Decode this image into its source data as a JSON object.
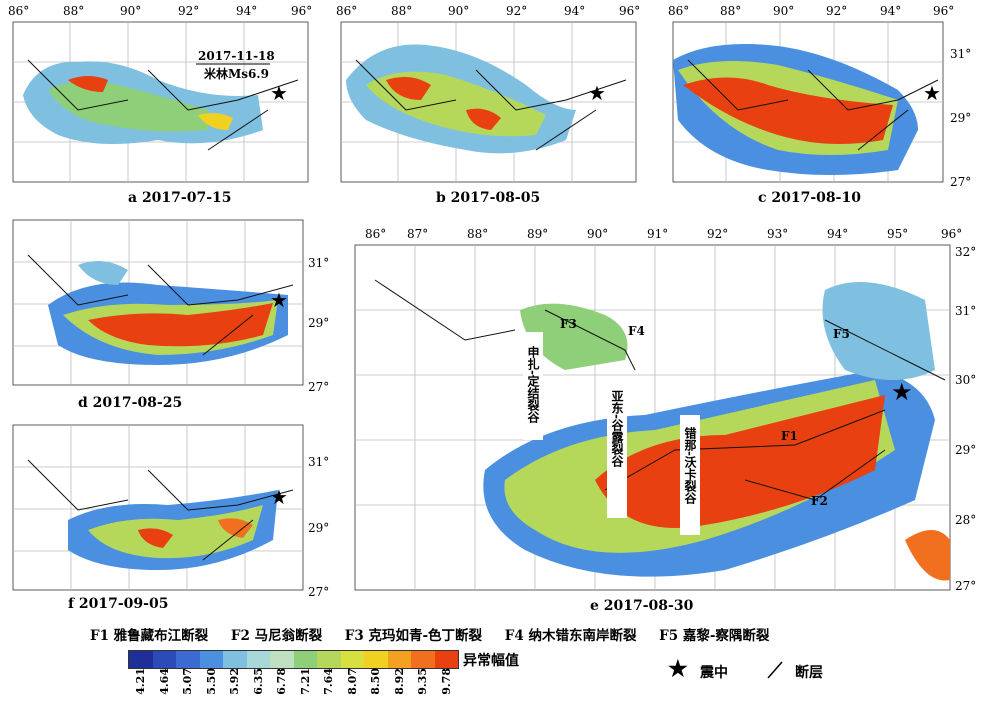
{
  "event": {
    "date": "2017-11-18",
    "name": "米林Ms6.9"
  },
  "panels": [
    {
      "id": "a",
      "caption": "a  2017-07-15",
      "lon_labels": [
        "86°",
        "88°",
        "90°",
        "92°",
        "94°",
        "96°"
      ],
      "lat_labels": []
    },
    {
      "id": "b",
      "caption": "b  2017-08-05",
      "lon_labels": [
        "86°",
        "88°",
        "90°",
        "92°",
        "94°",
        "96°"
      ],
      "lat_labels": []
    },
    {
      "id": "c",
      "caption": "c  2017-08-10",
      "lon_labels": [
        "86°",
        "88°",
        "90°",
        "92°",
        "94°",
        "96°"
      ],
      "lat_labels": [
        "31°",
        "29°",
        "27°"
      ]
    },
    {
      "id": "d",
      "caption": "d  2017-08-25",
      "lon_labels": [],
      "lat_labels": [
        "31°",
        "29°",
        "27°"
      ]
    },
    {
      "id": "f",
      "caption": "f  2017-09-05",
      "lon_labels": [],
      "lat_labels": [
        "31°",
        "29°",
        "27°"
      ]
    },
    {
      "id": "e",
      "caption": "e  2017-08-30",
      "lon_labels": [
        "86°",
        "87°",
        "88°",
        "89°",
        "90°",
        "91°",
        "92°",
        "93°",
        "94°",
        "95°",
        "96°"
      ],
      "lat_labels": [
        "32°",
        "31°",
        "30°",
        "29°",
        "28°",
        "27°"
      ]
    }
  ],
  "faults_legend": [
    "F1 雅鲁藏布江断裂",
    "F2 马尼翁断裂",
    "F3 克玛如青-色丁断裂",
    "F4 纳木错东南岸断裂",
    "F5 嘉黎-察隅断裂"
  ],
  "fault_labels": [
    "F1",
    "F2",
    "F3",
    "F4",
    "F5"
  ],
  "rifts": [
    "申扎-定结裂谷",
    "亚东-谷露裂谷",
    "错那-沃卡裂谷"
  ],
  "colorbar": {
    "title": "异常幅值",
    "ticks": [
      "4.21",
      "4.64",
      "5.07",
      "5.50",
      "5.92",
      "6.35",
      "6.78",
      "7.21",
      "7.64",
      "8.07",
      "8.50",
      "8.92",
      "9.35",
      "9.78"
    ],
    "colors": [
      "#1f2f9a",
      "#2a4bb8",
      "#3b6bd0",
      "#4a8fe0",
      "#7fbfe0",
      "#a8d8d8",
      "#bfe0c0",
      "#8fcf7a",
      "#b6d85a",
      "#d8e040",
      "#f0d020",
      "#f4a020",
      "#f07020",
      "#e84010"
    ]
  },
  "legend": {
    "epicenter": "震中",
    "fault": "断层"
  }
}
